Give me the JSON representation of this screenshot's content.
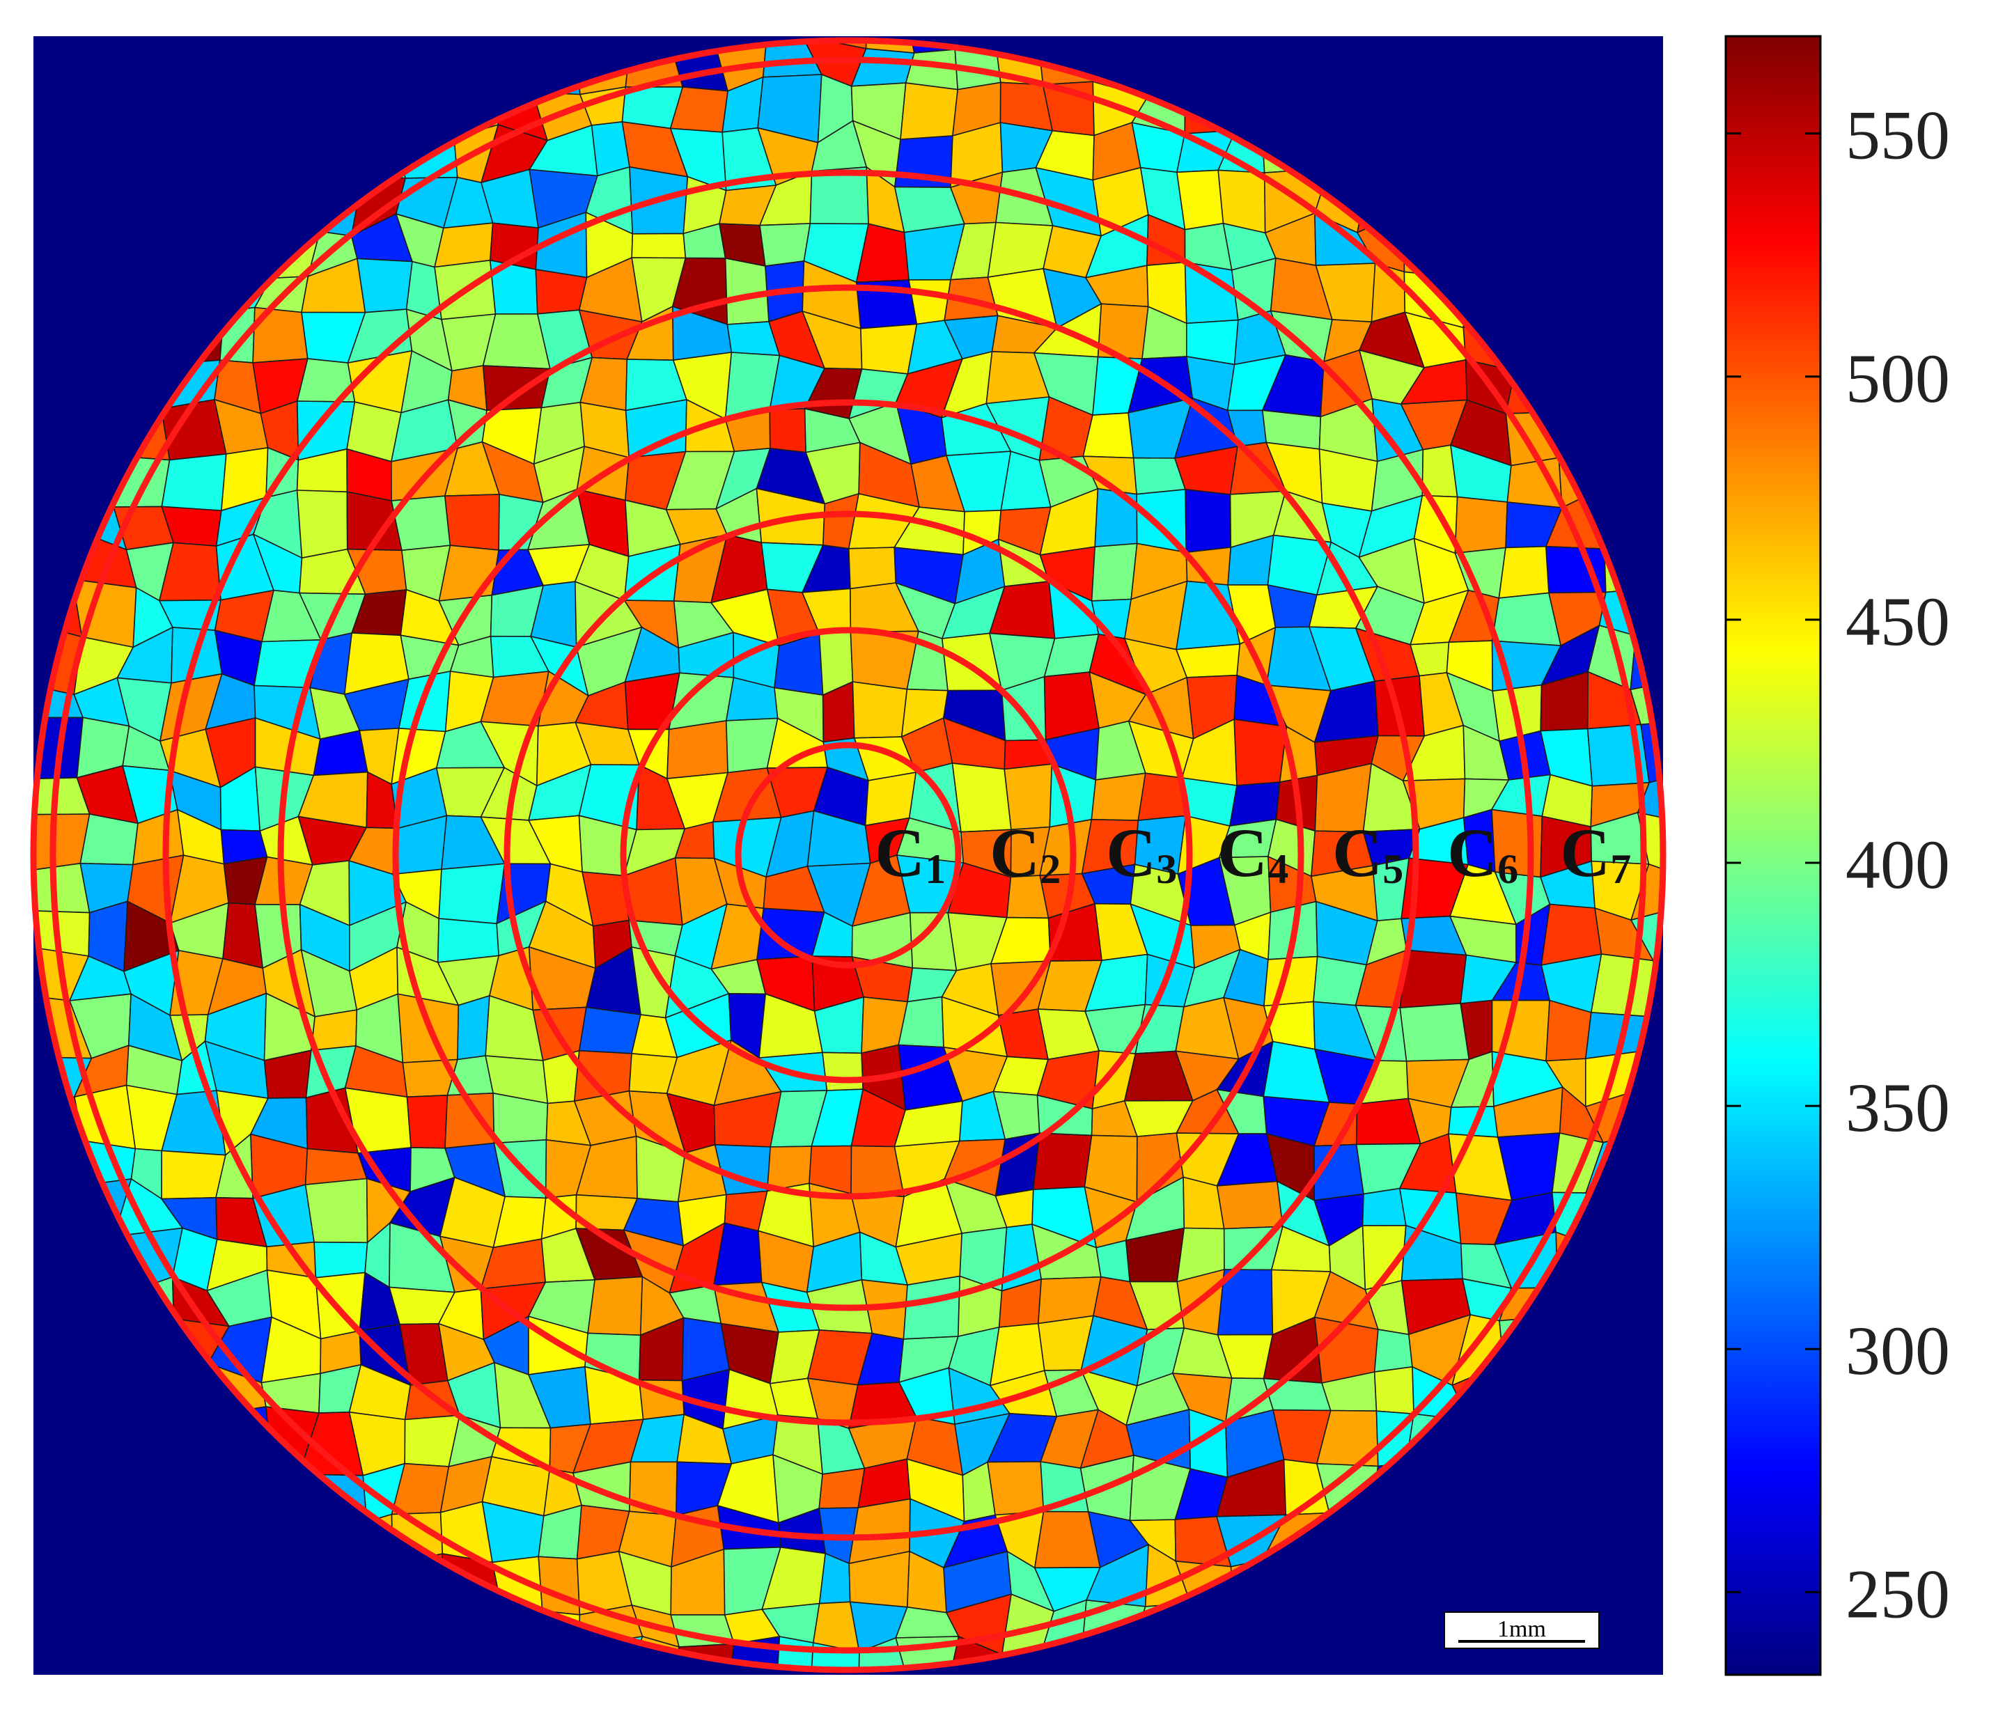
{
  "chart_data": {
    "type": "heatmap",
    "title": "",
    "description_kind": "grain map",
    "colormap": "jet",
    "background_color": "#000080",
    "ring_color": "#ff1a1a",
    "colorbar": {
      "min": 233,
      "max": 570,
      "ticks": [
        250,
        300,
        350,
        400,
        450,
        500,
        550
      ],
      "tick_labels": [
        "250",
        "300",
        "350",
        "400",
        "450",
        "500",
        "550"
      ]
    },
    "rings": [
      {
        "label": "C",
        "sub": "1"
      },
      {
        "label": "C",
        "sub": "2"
      },
      {
        "label": "C",
        "sub": "3"
      },
      {
        "label": "C",
        "sub": "4"
      },
      {
        "label": "C",
        "sub": "5"
      },
      {
        "label": "C",
        "sub": "6"
      },
      {
        "label": "C",
        "sub": "7"
      }
    ],
    "scale_bar": {
      "label": "1mm",
      "length_mm": 1
    }
  }
}
